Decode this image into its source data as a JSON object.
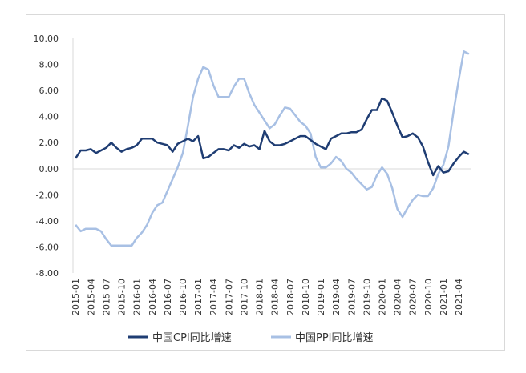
{
  "chart_data": {
    "type": "line",
    "title": "",
    "xlabel": "",
    "ylabel": "",
    "ylim": [
      -8,
      10
    ],
    "y_ticks": [
      "10.00",
      "8.00",
      "6.00",
      "4.00",
      "2.00",
      "0.00",
      "-2.00",
      "-4.00",
      "-6.00",
      "-8.00"
    ],
    "x_tick_labels": [
      "2015-01",
      "2015-04",
      "2015-07",
      "2015-10",
      "2016-01",
      "2016-04",
      "2016-07",
      "2016-10",
      "2017-01",
      "2017-04",
      "2017-07",
      "2017-10",
      "2018-01",
      "2018-04",
      "2018-07",
      "2018-10",
      "2019-01",
      "2019-04",
      "2019-07",
      "2019-10",
      "2020-01",
      "2020-04",
      "2020-07",
      "2020-10",
      "2021-01",
      "2021-04"
    ],
    "grid": false,
    "legend_position": "bottom",
    "x": [
      "2015-01",
      "2015-02",
      "2015-03",
      "2015-04",
      "2015-05",
      "2015-06",
      "2015-07",
      "2015-08",
      "2015-09",
      "2015-10",
      "2015-11",
      "2015-12",
      "2016-01",
      "2016-02",
      "2016-03",
      "2016-04",
      "2016-05",
      "2016-06",
      "2016-07",
      "2016-08",
      "2016-09",
      "2016-10",
      "2016-11",
      "2016-12",
      "2017-01",
      "2017-02",
      "2017-03",
      "2017-04",
      "2017-05",
      "2017-06",
      "2017-07",
      "2017-08",
      "2017-09",
      "2017-10",
      "2017-11",
      "2017-12",
      "2018-01",
      "2018-02",
      "2018-03",
      "2018-04",
      "2018-05",
      "2018-06",
      "2018-07",
      "2018-08",
      "2018-09",
      "2018-10",
      "2018-11",
      "2018-12",
      "2019-01",
      "2019-02",
      "2019-03",
      "2019-04",
      "2019-05",
      "2019-06",
      "2019-07",
      "2019-08",
      "2019-09",
      "2019-10",
      "2019-11",
      "2019-12",
      "2020-01",
      "2020-02",
      "2020-03",
      "2020-04",
      "2020-05",
      "2020-06",
      "2020-07",
      "2020-08",
      "2020-09",
      "2020-10",
      "2020-11",
      "2020-12",
      "2021-01",
      "2021-02",
      "2021-03",
      "2021-04",
      "2021-05",
      "2021-06"
    ],
    "series": [
      {
        "name": "中国CPI同比增速",
        "color": "#1f3d73",
        "values": [
          0.8,
          1.4,
          1.4,
          1.5,
          1.2,
          1.4,
          1.6,
          2.0,
          1.6,
          1.3,
          1.5,
          1.6,
          1.8,
          2.3,
          2.3,
          2.3,
          2.0,
          1.9,
          1.8,
          1.3,
          1.9,
          2.1,
          2.3,
          2.1,
          2.5,
          0.8,
          0.9,
          1.2,
          1.5,
          1.5,
          1.4,
          1.8,
          1.6,
          1.9,
          1.7,
          1.8,
          1.5,
          2.9,
          2.1,
          1.8,
          1.8,
          1.9,
          2.1,
          2.3,
          2.5,
          2.5,
          2.2,
          1.9,
          1.7,
          1.5,
          2.3,
          2.5,
          2.7,
          2.7,
          2.8,
          2.8,
          3.0,
          3.8,
          4.5,
          4.5,
          5.4,
          5.2,
          4.3,
          3.3,
          2.4,
          2.5,
          2.7,
          2.4,
          1.7,
          0.5,
          -0.5,
          0.2,
          -0.3,
          -0.2,
          0.4,
          0.9,
          1.3,
          1.1
        ]
      },
      {
        "name": "中国PPI同比增速",
        "color": "#a8c0e4",
        "values": [
          -4.3,
          -4.8,
          -4.6,
          -4.6,
          -4.6,
          -4.8,
          -5.4,
          -5.9,
          -5.9,
          -5.9,
          -5.9,
          -5.9,
          -5.3,
          -4.9,
          -4.3,
          -3.4,
          -2.8,
          -2.6,
          -1.7,
          -0.8,
          0.1,
          1.2,
          3.3,
          5.5,
          6.9,
          7.8,
          7.6,
          6.4,
          5.5,
          5.5,
          5.5,
          6.3,
          6.9,
          6.9,
          5.8,
          4.9,
          4.3,
          3.7,
          3.1,
          3.4,
          4.1,
          4.7,
          4.6,
          4.1,
          3.6,
          3.3,
          2.7,
          0.9,
          0.1,
          0.1,
          0.4,
          0.9,
          0.6,
          0.0,
          -0.3,
          -0.8,
          -1.2,
          -1.6,
          -1.4,
          -0.5,
          0.1,
          -0.4,
          -1.5,
          -3.1,
          -3.7,
          -3.0,
          -2.4,
          -2.0,
          -2.1,
          -2.1,
          -1.5,
          -0.4,
          0.3,
          1.7,
          4.4,
          6.8,
          9.0,
          8.8
        ]
      }
    ]
  }
}
